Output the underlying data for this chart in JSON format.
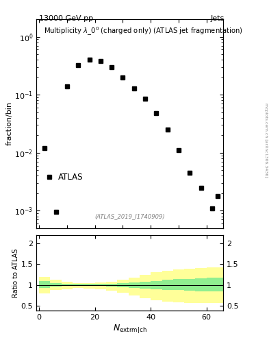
{
  "title_left": "13000 GeV pp",
  "title_right": "Jets",
  "main_title": "Multiplicity $\\lambda\\_0^0$ (charged only) (ATLAS jet fragmentation)",
  "atlas_label": "ATLAS",
  "watermark": "(ATLAS_2019_I1740909)",
  "arxiv_label": "mcplots.cern.ch [arXiv:1306.3436]",
  "xlabel": "$N_{\\mathrm{extrm|ch}}$",
  "ylabel_main": "fraction/bin",
  "ylabel_ratio": "Ratio to ATLAS",
  "data_x": [
    2,
    6,
    10,
    14,
    18,
    22,
    26,
    30,
    34,
    38,
    42,
    46,
    50,
    54,
    58,
    62,
    64
  ],
  "data_y": [
    0.012,
    0.00095,
    0.14,
    0.32,
    0.4,
    0.38,
    0.3,
    0.2,
    0.13,
    0.085,
    0.048,
    0.025,
    0.011,
    0.0045,
    0.0025,
    0.0011,
    0.0018
  ],
  "ratio_x_edges": [
    0,
    4,
    8,
    12,
    16,
    20,
    24,
    28,
    32,
    36,
    40,
    44,
    48,
    52,
    56,
    60,
    64,
    66
  ],
  "ratio_green_upper": [
    1.1,
    1.05,
    1.03,
    1.02,
    1.02,
    1.02,
    1.03,
    1.04,
    1.06,
    1.08,
    1.1,
    1.12,
    1.14,
    1.15,
    1.16,
    1.17,
    1.18
  ],
  "ratio_green_lower": [
    0.92,
    0.96,
    0.97,
    0.97,
    0.97,
    0.97,
    0.96,
    0.95,
    0.93,
    0.91,
    0.89,
    0.88,
    0.87,
    0.86,
    0.85,
    0.85,
    0.84
  ],
  "ratio_yellow_upper": [
    1.2,
    1.12,
    1.07,
    1.05,
    1.05,
    1.06,
    1.08,
    1.12,
    1.17,
    1.24,
    1.3,
    1.34,
    1.37,
    1.39,
    1.41,
    1.42,
    1.42
  ],
  "ratio_yellow_lower": [
    0.8,
    0.87,
    0.9,
    0.92,
    0.91,
    0.89,
    0.86,
    0.81,
    0.75,
    0.68,
    0.63,
    0.6,
    0.58,
    0.57,
    0.56,
    0.56,
    0.56
  ],
  "xlim": [
    -1,
    66
  ],
  "ylim_main": [
    0.0005,
    2.0
  ],
  "ylim_ratio": [
    0.38,
    2.2
  ],
  "ratio_yticks": [
    0.5,
    1.0,
    1.5,
    2.0
  ],
  "green_color": "#90EE90",
  "yellow_color": "#FFFF99"
}
